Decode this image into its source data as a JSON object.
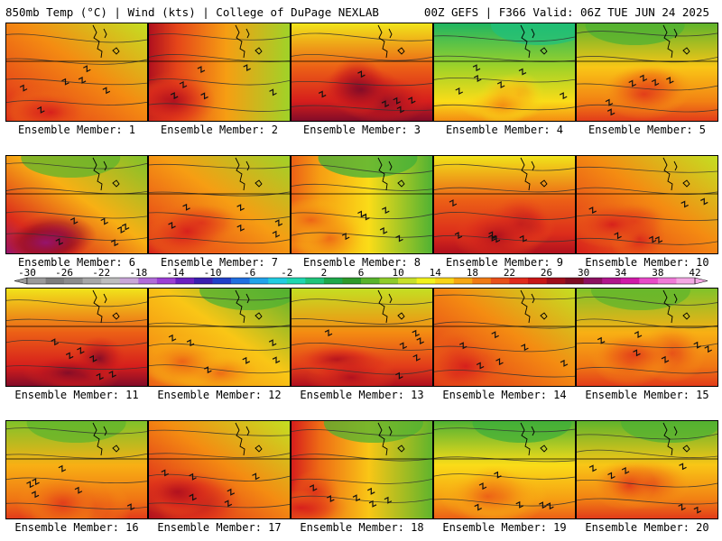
{
  "header": {
    "left": "850mb Temp (°C) | Wind (kts) | College of DuPage NEXLAB",
    "right": "00Z GEFS | F366 Valid: 06Z TUE JUN 24 2025"
  },
  "members": [
    {
      "label": "Ensemble Member: 1",
      "mean_c": 20,
      "warm_side": "sw",
      "hot_core": 26
    },
    {
      "label": "Ensemble Member: 2",
      "mean_c": 19,
      "warm_side": "w",
      "hot_core": 28
    },
    {
      "label": "Ensemble Member: 3",
      "mean_c": 22,
      "warm_side": "s",
      "hot_core": 30
    },
    {
      "label": "Ensemble Member: 4",
      "mean_c": 12,
      "warm_side": "s",
      "hot_core": 20
    },
    {
      "label": "Ensemble Member: 5",
      "mean_c": 17,
      "warm_side": "s",
      "hot_core": 24
    },
    {
      "label": "Ensemble Member: 6",
      "mean_c": 18,
      "warm_side": "sw",
      "hot_core": 32
    },
    {
      "label": "Ensemble Member: 7",
      "mean_c": 19,
      "warm_side": "sw",
      "hot_core": 26
    },
    {
      "label": "Ensemble Member: 8",
      "mean_c": 16,
      "warm_side": "w",
      "hot_core": 22
    },
    {
      "label": "Ensemble Member: 9",
      "mean_c": 22,
      "warm_side": "s",
      "hot_core": 28
    },
    {
      "label": "Ensemble Member: 10",
      "mean_c": 20,
      "warm_side": "sw",
      "hot_core": 26
    },
    {
      "label": "Ensemble Member: 11",
      "mean_c": 22,
      "warm_side": "s",
      "hot_core": 30
    },
    {
      "label": "Ensemble Member: 12",
      "mean_c": 17,
      "warm_side": "sw",
      "hot_core": 22
    },
    {
      "label": "Ensemble Member: 13",
      "mean_c": 20,
      "warm_side": "s",
      "hot_core": 28
    },
    {
      "label": "Ensemble Member: 14",
      "mean_c": 20,
      "warm_side": "sw",
      "hot_core": 26
    },
    {
      "label": "Ensemble Member: 15",
      "mean_c": 18,
      "warm_side": "s",
      "hot_core": 24
    },
    {
      "label": "Ensemble Member: 16",
      "mean_c": 18,
      "warm_side": "s",
      "hot_core": 24
    },
    {
      "label": "Ensemble Member: 17",
      "mean_c": 20,
      "warm_side": "sw",
      "hot_core": 28
    },
    {
      "label": "Ensemble Member: 18",
      "mean_c": 17,
      "warm_side": "w",
      "hot_core": 26
    },
    {
      "label": "Ensemble Member: 19",
      "mean_c": 16,
      "warm_side": "s",
      "hot_core": 22
    },
    {
      "label": "Ensemble Member: 20",
      "mean_c": 17,
      "warm_side": "s",
      "hot_core": 24
    }
  ],
  "colorbar": {
    "labels": [
      "-30",
      "-26",
      "-22",
      "-18",
      "-14",
      "-10",
      "-6",
      "-2",
      "2",
      "6",
      "10",
      "14",
      "18",
      "22",
      "26",
      "30",
      "34",
      "38",
      "42"
    ],
    "colors": [
      "#9a9a9a",
      "#7d7d7d",
      "#8c8c8c",
      "#a7a7a7",
      "#bdbdbd",
      "#c9a6d8",
      "#b06bd8",
      "#9b3fd4",
      "#6a1fc0",
      "#3a1fb0",
      "#2040c8",
      "#1f6fe0",
      "#21a3ea",
      "#22cce0",
      "#1fd6b0",
      "#20c47a",
      "#1ea84a",
      "#2e9a2a",
      "#58b42c",
      "#8fcc2a",
      "#c8e02a",
      "#f2f21c",
      "#f8d417",
      "#f6a713",
      "#f07a14",
      "#e8501a",
      "#e02a1c",
      "#c81616",
      "#a00e1a",
      "#7e0c22",
      "#8c1060",
      "#b0168c",
      "#d01aa8",
      "#e84ac8",
      "#f07ad8",
      "#f4a8e4"
    ]
  }
}
